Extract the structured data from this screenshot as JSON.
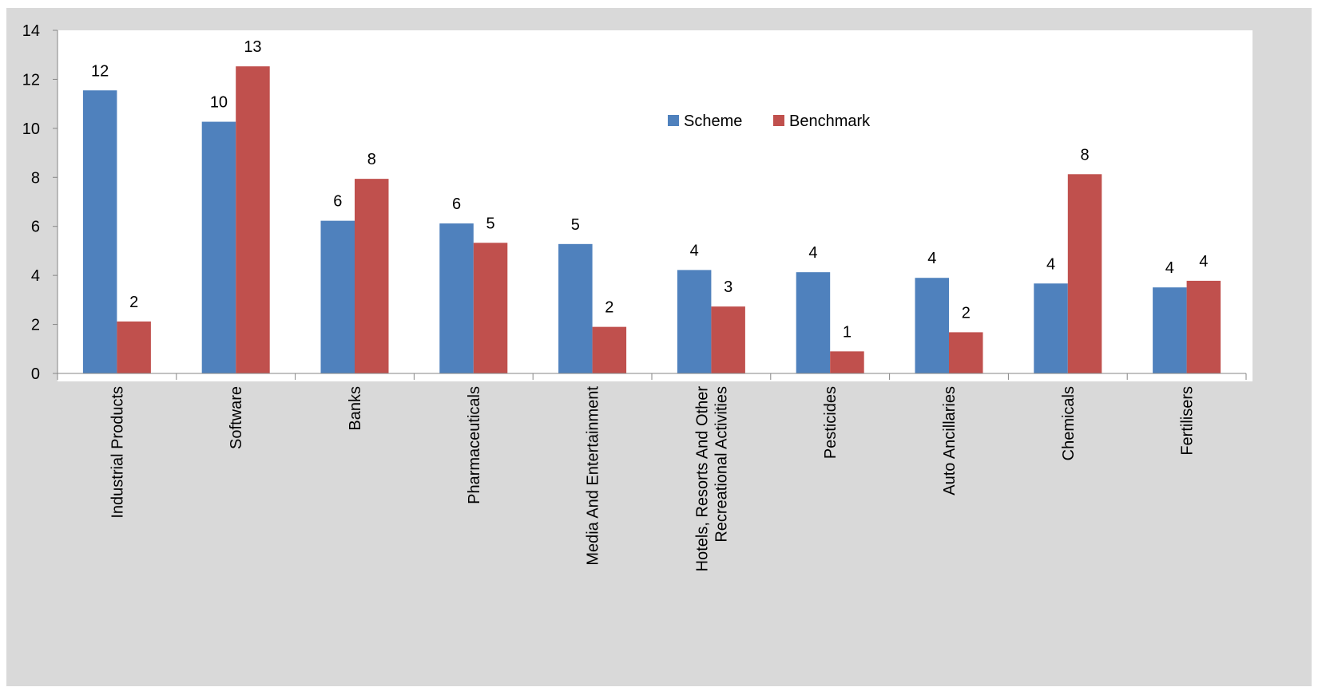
{
  "chart_data": {
    "type": "bar",
    "title": "",
    "xlabel": "",
    "ylabel": "",
    "ylim": [
      0,
      14
    ],
    "yticks": [
      "0",
      "2",
      "4",
      "6",
      "8",
      "10",
      "12",
      "14"
    ],
    "grid": false,
    "legend_position": "top-center",
    "categories": [
      [
        "Industrial Products"
      ],
      [
        "Software"
      ],
      [
        "Banks"
      ],
      [
        "Pharmaceuticals"
      ],
      [
        "Media And Entertainment"
      ],
      [
        "Hotels, Resorts And Other",
        "Recreational Activities"
      ],
      [
        "Pesticides"
      ],
      [
        "Auto Ancillaries"
      ],
      [
        "Chemicals"
      ],
      [
        "Fertilisers"
      ]
    ],
    "series": [
      {
        "name": "Scheme",
        "color": "#4f81bd",
        "values": [
          11.55,
          10.27,
          6.23,
          6.12,
          5.28,
          4.22,
          4.13,
          3.9,
          3.67,
          3.51
        ],
        "labels": [
          "12",
          "10",
          "6",
          "6",
          "5",
          "4",
          "4",
          "4",
          "4",
          "4"
        ]
      },
      {
        "name": "Benchmark",
        "color": "#c0504d",
        "values": [
          2.12,
          12.53,
          7.94,
          5.33,
          1.9,
          2.73,
          0.9,
          1.68,
          8.13,
          3.78
        ],
        "labels": [
          "2",
          "13",
          "8",
          "5",
          "2",
          "3",
          "1",
          "2",
          "8",
          "4"
        ]
      }
    ]
  }
}
